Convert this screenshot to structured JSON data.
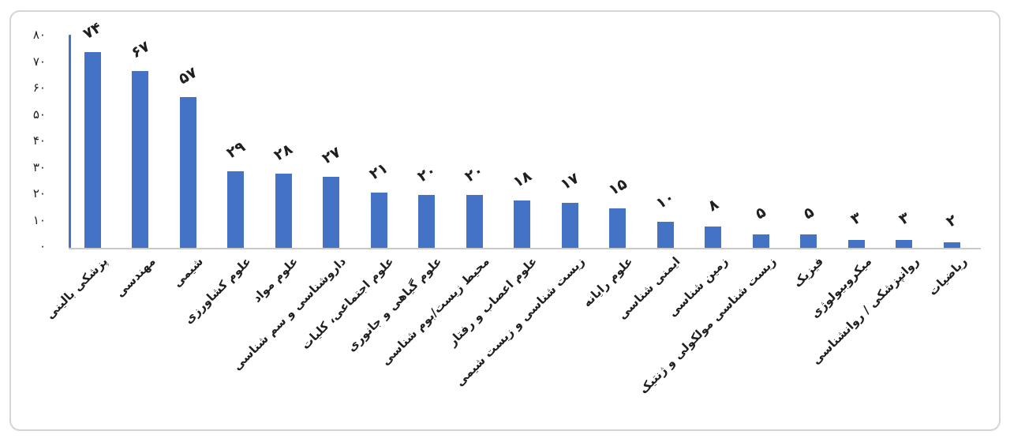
{
  "chart_data": {
    "type": "bar",
    "title": "",
    "xlabel": "",
    "ylabel": "",
    "ylim": [
      0,
      80
    ],
    "grid": false,
    "legend": null,
    "categories": [
      "پزشکی بالینی",
      "مهندسی",
      "شیمی",
      "علوم کشاورزی",
      "علوم مواد",
      "داروشناسی و سم شناسی",
      "علوم اجتماعی، کلیات",
      "علوم گیاهی و جانوری",
      "محیط زیست/بوم شناسی",
      "علوم اعصاب و رفتار",
      "زیست شناسی و زیست شیمی",
      "علوم رایانه",
      "ایمنی شناسی",
      "زمین شناسی",
      "زیست شناسی مولکولی و ژنتیک",
      "فیزیک",
      "میکروبیولوژی",
      "روانپزشکی / روانشناسی",
      "ریاضیات"
    ],
    "values": [
      74,
      67,
      57,
      29,
      28,
      27,
      21,
      20,
      20,
      18,
      17,
      15,
      10,
      8,
      5,
      5,
      3,
      3,
      2
    ],
    "value_labels": [
      "۷۴",
      "۶۷",
      "۵۷",
      "۲۹",
      "۲۸",
      "۲۷",
      "۲۱",
      "۲۰",
      "۲۰",
      "۱۸",
      "۱۷",
      "۱۵",
      "۱۰",
      "۸",
      "۵",
      "۵",
      "۳",
      "۳",
      "۲"
    ],
    "yticks": [
      {
        "value": 0,
        "label": "۰"
      },
      {
        "value": 10,
        "label": "۱۰"
      },
      {
        "value": 20,
        "label": "۲۰"
      },
      {
        "value": 30,
        "label": "۳۰"
      },
      {
        "value": 40,
        "label": "۴۰"
      },
      {
        "value": 50,
        "label": "۵۰"
      },
      {
        "value": 60,
        "label": "۶۰"
      },
      {
        "value": 70,
        "label": "۷۰"
      },
      {
        "value": 80,
        "label": "۸۰"
      }
    ],
    "colors": {
      "bar": "#4472C4",
      "y_axis_line": "#4571BE",
      "baseline": "#C9C9C9",
      "text": "#1F1F1F",
      "frame_border": "#D5D5D5",
      "background": "#FFFFFF"
    }
  }
}
